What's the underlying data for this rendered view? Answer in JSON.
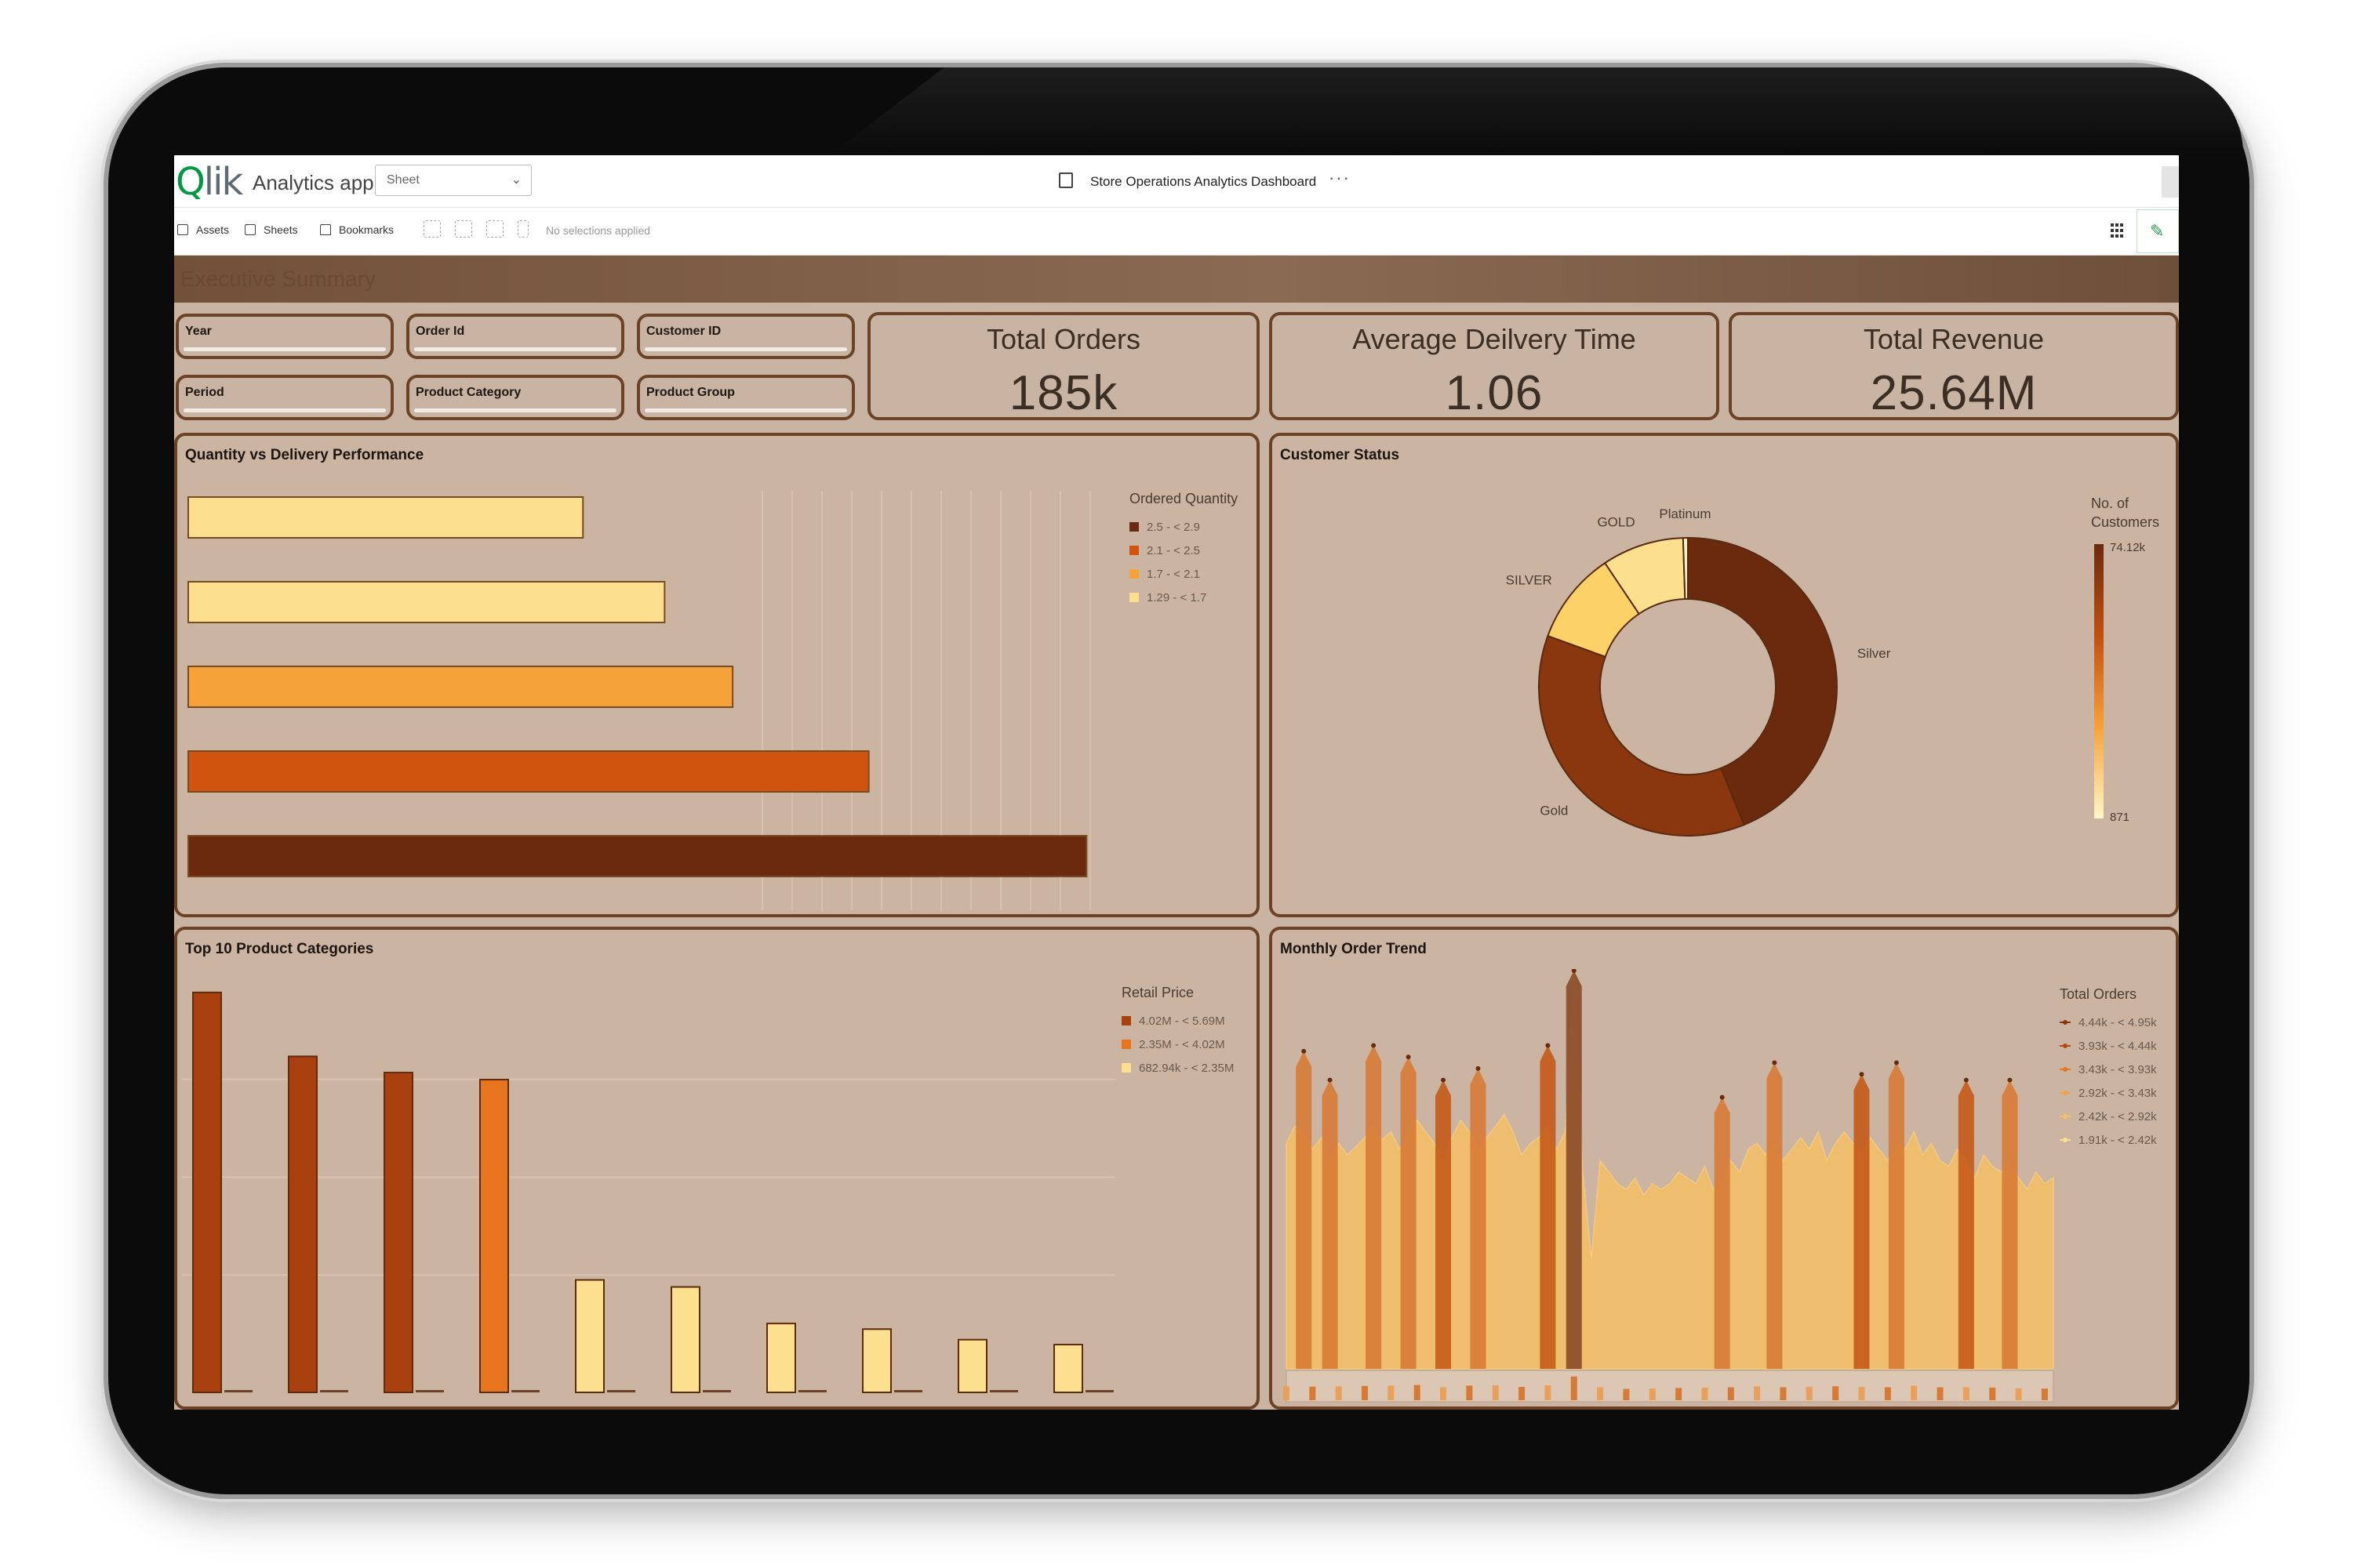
{
  "topbar": {
    "logo_q": "Q",
    "logo_rest": "lik",
    "app_name": "Analytics app",
    "sheet_select": "Sheet",
    "document_title": "Store Operations Analytics Dashboard",
    "more": "···"
  },
  "toolbar": {
    "assets": "Assets",
    "sheets": "Sheets",
    "bookmarks": "Bookmarks",
    "selection_status": "No selections applied"
  },
  "section_title": "Executive Summary",
  "filters": [
    "Year",
    "Order Id",
    "Customer ID",
    "Period",
    "Product Category",
    "Product Group"
  ],
  "kpis": [
    {
      "title": "Total Orders",
      "value": "185k"
    },
    {
      "title": "Average Deilvery Time",
      "value": "1.06"
    },
    {
      "title": "Total Revenue",
      "value": "25.64M"
    }
  ],
  "panels": {
    "qty": {
      "title": "Quantity vs Delivery Performance"
    },
    "customer": {
      "title": "Customer Status"
    },
    "top10": {
      "title": "Top 10 Product Categories"
    },
    "trend": {
      "title": "Monthly Order Trend"
    }
  },
  "colors": {
    "darkest": "#6b2a0e",
    "dark": "#a8400f",
    "orange": "#e8741e",
    "light_orange": "#f6a23a",
    "pale": "#fde08f",
    "frame": "#6b4226"
  },
  "chart_data": [
    {
      "id": "qty",
      "type": "bar",
      "orientation": "horizontal",
      "legend_title": "Ordered Quantity",
      "legend": [
        "2.5 - < 2.9",
        "2.1 - < 2.5",
        "1.7 - < 2.1",
        "1.29 - < 1.7"
      ],
      "legend_colors": [
        "#6b2a0e",
        "#d0530e",
        "#f6a23a",
        "#fde08f"
      ],
      "values": [
        1.45,
        1.75,
        2.0,
        2.5,
        3.3
      ],
      "xlim": [
        0,
        3.4
      ],
      "bar_colors": [
        "#fde08f",
        "#fde08f",
        "#f6a23a",
        "#d0530e",
        "#6b2a0e"
      ],
      "grid": true
    },
    {
      "id": "customer",
      "type": "pie",
      "donut": true,
      "legend_title": "No. of Customers",
      "legend_max": "74.12k",
      "legend_min": "871",
      "slices": [
        {
          "label": "Silver",
          "value": 74120,
          "color": "#6b2a0e"
        },
        {
          "label": "Gold",
          "value": 62000,
          "color": "#8a3710"
        },
        {
          "label": "SILVER",
          "value": 17000,
          "color": "#fcd167"
        },
        {
          "label": "GOLD",
          "value": 15000,
          "color": "#fde08f"
        },
        {
          "label": "Platinum",
          "value": 871,
          "color": "#fff1c4"
        }
      ]
    },
    {
      "id": "top10",
      "type": "bar",
      "legend_title": "Retail Price",
      "legend": [
        "4.02M - < 5.69M",
        "2.35M - < 4.02M",
        "682.94k - < 2.35M"
      ],
      "legend_colors": [
        "#a8400f",
        "#e8741e",
        "#fde08f"
      ],
      "values": [
        5.69,
        4.78,
        4.55,
        4.45,
        1.6,
        1.5,
        0.98,
        0.9,
        0.75,
        0.68
      ],
      "value_unit": "M",
      "bar_colors": [
        "#a8400f",
        "#a8400f",
        "#a8400f",
        "#e8741e",
        "#fde08f",
        "#fde08f",
        "#fde08f",
        "#fde08f",
        "#fde08f",
        "#fde08f"
      ],
      "ylim": [
        0,
        5.8
      ]
    },
    {
      "id": "trend",
      "type": "area",
      "legend_title": "Total Orders",
      "legend": [
        "4.44k - < 4.95k",
        "3.93k - < 4.44k",
        "3.43k - < 3.93k",
        "2.92k - < 3.43k",
        "2.42k - < 2.92k",
        "1.91k - < 2.42k"
      ],
      "legend_colors": [
        "#8a3710",
        "#b04a12",
        "#e8741e",
        "#f2a04a",
        "#f6c068",
        "#fde08f"
      ],
      "values": [
        3450,
        3600,
        3550,
        3400,
        3500,
        3300,
        3450,
        3350,
        3420,
        3500,
        3600,
        3480,
        3550,
        3400,
        3500,
        3650,
        3550,
        3450,
        3300,
        3500,
        3650,
        3550,
        3400,
        3500,
        3600,
        3700,
        3550,
        3350,
        3450,
        3500,
        3600,
        3400,
        3550,
        4950,
        3200,
        2450,
        3300,
        3200,
        3100,
        3050,
        3150,
        3000,
        3100,
        3050,
        3100,
        3200,
        3150,
        3100,
        3250,
        3050,
        3150,
        3300,
        3200,
        3400,
        3450,
        3350,
        3450,
        3300,
        3400,
        3500,
        3400,
        3550,
        3300,
        3450,
        3550,
        3450,
        3350,
        3500,
        3400,
        3300,
        3450,
        3400,
        3550,
        3350,
        3450,
        3300,
        3250,
        3400,
        3300,
        3150,
        3350,
        3250,
        3200,
        3300,
        3150,
        3050,
        3200,
        3100,
        3150
      ],
      "ylim": [
        1900,
        5100
      ]
    }
  ]
}
